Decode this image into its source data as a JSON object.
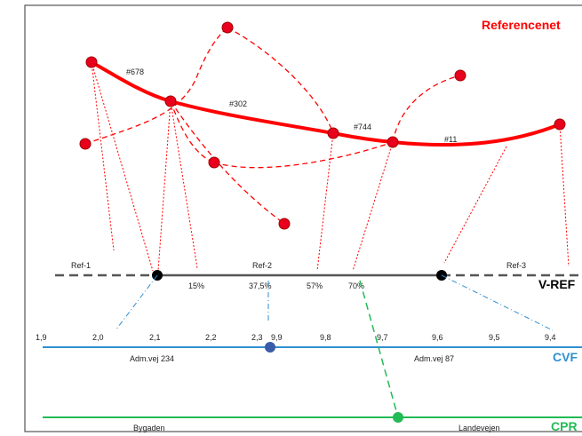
{
  "diagram": {
    "title": "Referencenet",
    "segment_labels": [
      "#678",
      "#302",
      "#744",
      "#11"
    ],
    "ref_labels": [
      "Ref-1",
      "Ref-2",
      "Ref-3"
    ],
    "percent_labels": [
      "15%",
      "37,5%",
      "57%",
      "70%"
    ],
    "vref_label": "V-REF",
    "cvf_ticks": [
      "1,9",
      "2,0",
      "2,1",
      "2,2",
      "2,3",
      "9,9",
      "9,8",
      "9,7",
      "9,6",
      "9,5",
      "9,4"
    ],
    "cvf_road_labels": [
      "Adm.vej 234",
      "Adm.vej 87"
    ],
    "cvf_label": "CVF",
    "cpr_road_labels": [
      "Bygaden",
      "Landevejen"
    ],
    "cpr_label": "CPR",
    "colors": {
      "referencenet": "#ff0000",
      "vref": "#000000",
      "cvf": "#2f8fd0",
      "cvf_point": "#3a5ca8",
      "cpr": "#22bb55",
      "frame": "#555555"
    }
  }
}
